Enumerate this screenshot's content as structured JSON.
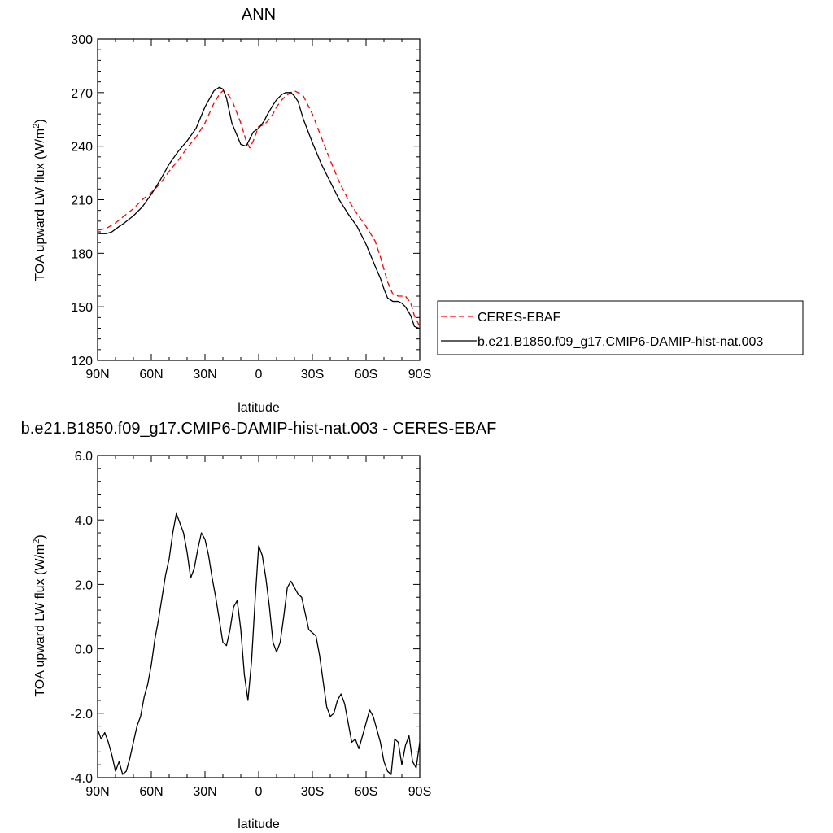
{
  "chart_data": [
    {
      "type": "line",
      "title": "ANN",
      "xlabel": "latitude",
      "ylabel": "TOA upward LW flux (W/m",
      "ylabel_sup": "2",
      "ylabel_end": ")",
      "x_ticks": [
        {
          "value": 90,
          "label": "90N"
        },
        {
          "value": 60,
          "label": "60N"
        },
        {
          "value": 30,
          "label": "30N"
        },
        {
          "value": 0,
          "label": "0"
        },
        {
          "value": -30,
          "label": "30S"
        },
        {
          "value": -60,
          "label": "60S"
        },
        {
          "value": -90,
          "label": "90S"
        }
      ],
      "xlim": [
        90,
        -90
      ],
      "ylim": [
        120,
        300
      ],
      "y_ticks": [
        {
          "value": 120,
          "label": "120"
        },
        {
          "value": 150,
          "label": "150"
        },
        {
          "value": 180,
          "label": "180"
        },
        {
          "value": 210,
          "label": "210"
        },
        {
          "value": 240,
          "label": "240"
        },
        {
          "value": 270,
          "label": "270"
        },
        {
          "value": 300,
          "label": "300"
        }
      ],
      "legend_position": "right",
      "series": [
        {
          "name": "CERES-EBAF",
          "color": "#ff0000",
          "style": "dashed",
          "x": [
            89.5,
            85,
            80,
            75,
            70,
            65,
            60,
            55,
            50,
            45,
            40,
            35,
            30,
            25,
            22,
            20,
            18,
            15,
            10,
            7,
            5,
            3,
            0,
            -3,
            -5,
            -8,
            -10,
            -13,
            -15,
            -18,
            -20,
            -22,
            -25,
            -30,
            -35,
            -40,
            -45,
            -50,
            -55,
            -60,
            -65,
            -68,
            -70,
            -72,
            -75,
            -78,
            -80,
            -82,
            -85,
            -87,
            -89.5
          ],
          "y": [
            193,
            194,
            197,
            201,
            205,
            210,
            214,
            219,
            226,
            232,
            239,
            245,
            253,
            264,
            269,
            271,
            270,
            266,
            253,
            243,
            239,
            243,
            251,
            252,
            254,
            258,
            262,
            266,
            268,
            270,
            271,
            270,
            268,
            258,
            245,
            232,
            220,
            210,
            202,
            195,
            187,
            178,
            171,
            164,
            157,
            156,
            156,
            156,
            152,
            145,
            140
          ]
        },
        {
          "name": "b.e21.B1850.f09_g17.CMIP6-DAMIP-hist-nat.003",
          "color": "#000000",
          "style": "solid",
          "x": [
            89.5,
            85,
            82,
            78,
            75,
            70,
            65,
            60,
            55,
            50,
            45,
            40,
            35,
            30,
            25,
            22,
            20,
            18,
            15,
            10,
            7,
            5,
            3,
            0,
            -3,
            -5,
            -8,
            -10,
            -13,
            -15,
            -18,
            -20,
            -22,
            -25,
            -30,
            -35,
            -40,
            -45,
            -50,
            -55,
            -60,
            -65,
            -68,
            -70,
            -72,
            -75,
            -78,
            -80,
            -82,
            -85,
            -87,
            -89.5
          ],
          "y": [
            191,
            191,
            192,
            195,
            197,
            201,
            206,
            213,
            221,
            230,
            237,
            243,
            250,
            262,
            271,
            273,
            272,
            267,
            253,
            241,
            240,
            244,
            248,
            250,
            254,
            258,
            263,
            266,
            269,
            270,
            270,
            268,
            265,
            255,
            242,
            230,
            220,
            210,
            202,
            195,
            185,
            173,
            166,
            160,
            155,
            153,
            153,
            152,
            150,
            145,
            139,
            138
          ]
        }
      ]
    },
    {
      "type": "line",
      "title": "b.e21.B1850.f09_g17.CMIP6-DAMIP-hist-nat.003 - CERES-EBAF",
      "xlabel": "latitude",
      "ylabel": "TOA upward LW flux (W/m",
      "ylabel_sup": "2",
      "ylabel_end": ")",
      "x_ticks": [
        {
          "value": 90,
          "label": "90N"
        },
        {
          "value": 60,
          "label": "60N"
        },
        {
          "value": 30,
          "label": "30N"
        },
        {
          "value": 0,
          "label": "0"
        },
        {
          "value": -30,
          "label": "30S"
        },
        {
          "value": -60,
          "label": "60S"
        },
        {
          "value": -90,
          "label": "90S"
        }
      ],
      "xlim": [
        90,
        -90
      ],
      "ylim": [
        -4,
        6
      ],
      "y_ticks": [
        {
          "value": -4,
          "label": "-4.0"
        },
        {
          "value": -2,
          "label": "-2.0"
        },
        {
          "value": 0,
          "label": "0.0"
        },
        {
          "value": 2,
          "label": "2.0"
        },
        {
          "value": 4,
          "label": "4.0"
        },
        {
          "value": 6,
          "label": "6.0"
        }
      ],
      "series": [
        {
          "color": "#000000",
          "style": "solid",
          "x": [
            90,
            88,
            86,
            84,
            82,
            80,
            78,
            76,
            74,
            72,
            70,
            68,
            66,
            64,
            62,
            60,
            58,
            56,
            54,
            52,
            50,
            48,
            46,
            44,
            42,
            40,
            38,
            36,
            34,
            32,
            30,
            28,
            26,
            24,
            22,
            20,
            18,
            16,
            14,
            12,
            10,
            8,
            6,
            4,
            2,
            0,
            -2,
            -4,
            -6,
            -8,
            -10,
            -12,
            -14,
            -16,
            -18,
            -20,
            -22,
            -24,
            -26,
            -28,
            -30,
            -32,
            -34,
            -36,
            -38,
            -40,
            -42,
            -44,
            -46,
            -48,
            -50,
            -52,
            -54,
            -56,
            -58,
            -60,
            -62,
            -64,
            -66,
            -68,
            -70,
            -72,
            -74,
            -76,
            -78,
            -80,
            -82,
            -84,
            -86,
            -88,
            -90
          ],
          "y": [
            -2.5,
            -2.8,
            -2.6,
            -2.9,
            -3.3,
            -3.8,
            -3.5,
            -3.9,
            -3.8,
            -3.4,
            -2.9,
            -2.4,
            -2.1,
            -1.5,
            -1.1,
            -0.5,
            0.3,
            0.9,
            1.6,
            2.3,
            2.8,
            3.6,
            4.2,
            3.9,
            3.6,
            3.0,
            2.2,
            2.5,
            3.1,
            3.6,
            3.4,
            2.9,
            2.2,
            1.6,
            0.9,
            0.2,
            0.1,
            0.6,
            1.3,
            1.5,
            0.6,
            -0.8,
            -1.6,
            -0.4,
            1.5,
            3.2,
            2.9,
            2.2,
            1.3,
            0.2,
            -0.1,
            0.2,
            1.0,
            1.9,
            2.1,
            1.9,
            1.7,
            1.6,
            1.1,
            0.6,
            0.5,
            0.4,
            -0.2,
            -1.0,
            -1.8,
            -2.1,
            -2.0,
            -1.6,
            -1.4,
            -1.7,
            -2.3,
            -2.9,
            -2.8,
            -3.1,
            -2.7,
            -2.3,
            -1.9,
            -2.1,
            -2.5,
            -2.9,
            -3.5,
            -3.8,
            -3.9,
            -2.8,
            -2.9,
            -3.6,
            -3.0,
            -2.7,
            -3.5,
            -3.7,
            -2.9
          ]
        }
      ]
    }
  ]
}
